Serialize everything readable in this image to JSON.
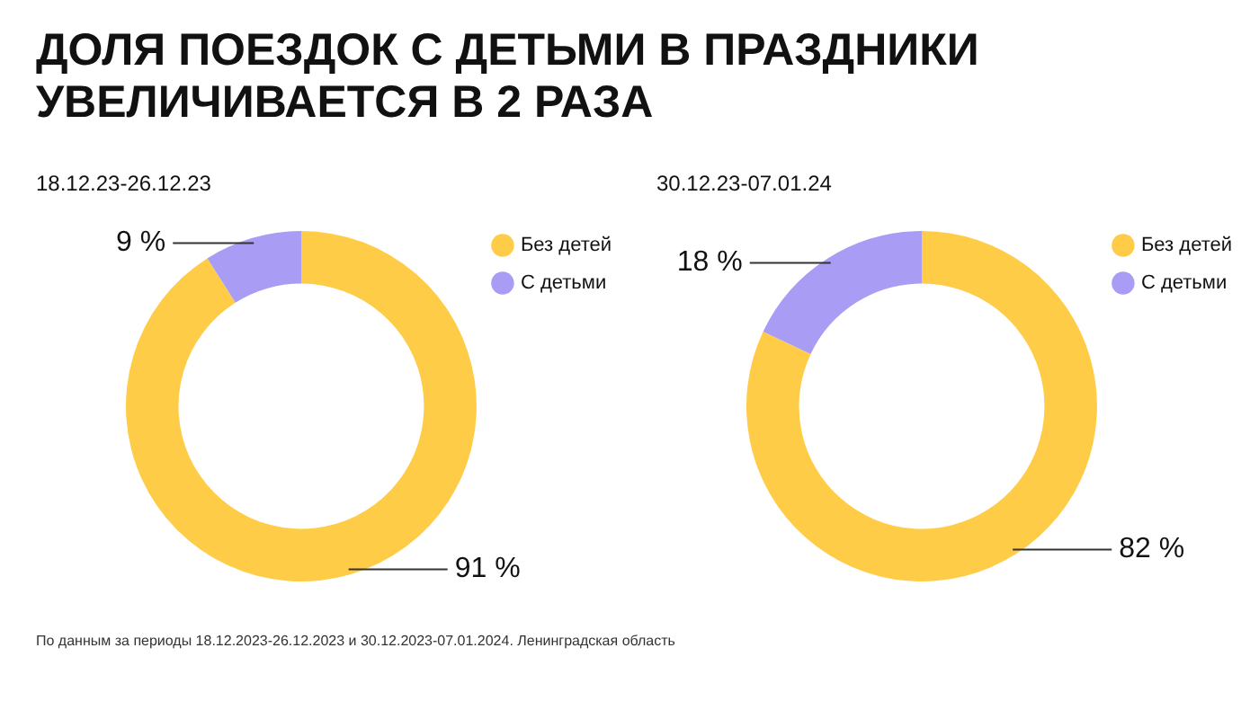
{
  "chart_data": [
    {
      "type": "donut",
      "title": "ДОЛЯ ПОЕЗДОК С ДЕТЬМИ В ПРАЗДНИКИ УВЕЛИЧИВАЕТСЯ В 2 РАЗА",
      "subtitle": "18.12.23-26.12.23",
      "categories": [
        "Без детей",
        "С детьми"
      ],
      "values": [
        91,
        9
      ],
      "colors": [
        "#ffcc47",
        "#a99cf5"
      ],
      "value_labels": [
        "91 %",
        "9 %"
      ],
      "legend": "top right",
      "annotations": [
        "По данным за периоды 18.12.2023-26.12.2023 и 30.12.2023-07.01.2024. Ленинградская область"
      ]
    },
    {
      "type": "donut",
      "subtitle": "30.12.23-07.01.24",
      "categories": [
        "Без детей",
        "С детьми"
      ],
      "values": [
        82,
        18
      ],
      "colors": [
        "#ffcc47",
        "#a99cf5"
      ],
      "value_labels": [
        "82 %",
        "18 %"
      ],
      "legend": "top right"
    }
  ]
}
